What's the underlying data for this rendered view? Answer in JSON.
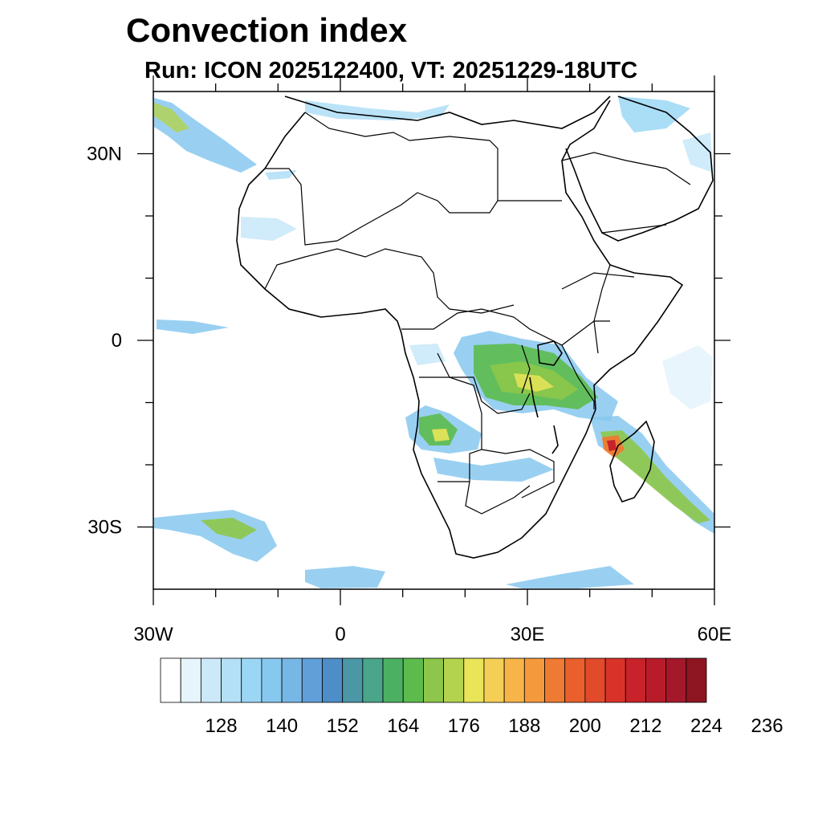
{
  "title": "Convection index",
  "subtitle": "Run: ICON 2025122400,  VT: 20251229-18UTC",
  "map": {
    "lon_range": [
      -30,
      60
    ],
    "lat_range": [
      -40,
      40
    ],
    "lon_ticks": [
      {
        "value": -30,
        "label": "30W"
      },
      {
        "value": 0,
        "label": "0"
      },
      {
        "value": 30,
        "label": "30E"
      },
      {
        "value": 60,
        "label": "60E"
      }
    ],
    "lat_ticks": [
      {
        "value": 30,
        "label": "30N"
      },
      {
        "value": 0,
        "label": "0"
      },
      {
        "value": -30,
        "label": "30S"
      }
    ]
  },
  "colorbar": {
    "labels": [
      "128",
      "140",
      "152",
      "164",
      "176",
      "188",
      "200",
      "212",
      "224",
      "236"
    ],
    "colors": [
      "#ffffff",
      "#e6f4fc",
      "#cbe9f9",
      "#b3e0f7",
      "#9bd7f5",
      "#87c8ef",
      "#77b7e6",
      "#619fd9",
      "#4e8ec8",
      "#4b97a6",
      "#4aa58a",
      "#4cb062",
      "#5cbb4c",
      "#8dc64a",
      "#b3d34e",
      "#e9e458",
      "#f5cf55",
      "#f7b448",
      "#f59a3c",
      "#ef7a33",
      "#e9602c",
      "#e14a2a",
      "#d93229",
      "#c8222a",
      "#b81c2a",
      "#a3192b",
      "#8d1622"
    ]
  }
}
